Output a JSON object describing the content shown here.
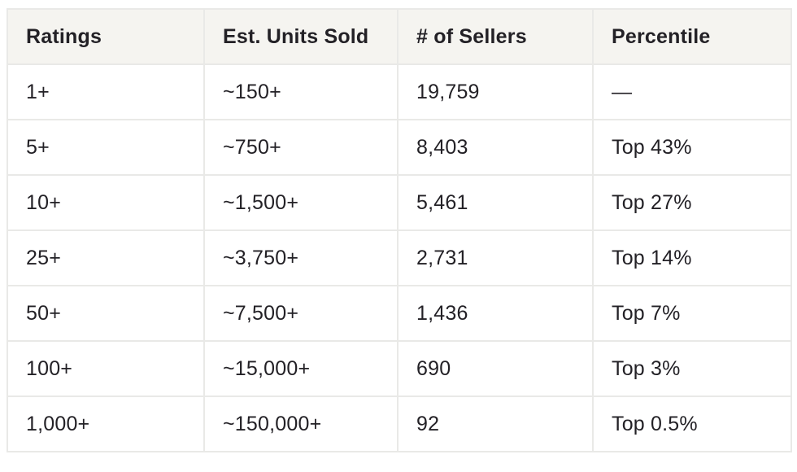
{
  "colors": {
    "header_background": "#f5f4f0",
    "border": "#e9e9e7",
    "text": "#232126",
    "row_background": "#ffffff"
  },
  "chart_data": {
    "type": "table",
    "columns": [
      "Ratings",
      "Est. Units Sold",
      "# of Sellers",
      "Percentile"
    ],
    "rows": [
      [
        "1+",
        "~150+",
        "19,759",
        "—"
      ],
      [
        "5+",
        "~750+",
        "8,403",
        "Top 43%"
      ],
      [
        "10+",
        "~1,500+",
        "5,461",
        "Top 27%"
      ],
      [
        "25+",
        "~3,750+",
        "2,731",
        "Top 14%"
      ],
      [
        "50+",
        "~7,500+",
        "1,436",
        "Top 7%"
      ],
      [
        "100+",
        "~15,000+",
        "690",
        "Top 3%"
      ],
      [
        "1,000+",
        "~150,000+",
        "92",
        "Top 0.5%"
      ]
    ]
  }
}
